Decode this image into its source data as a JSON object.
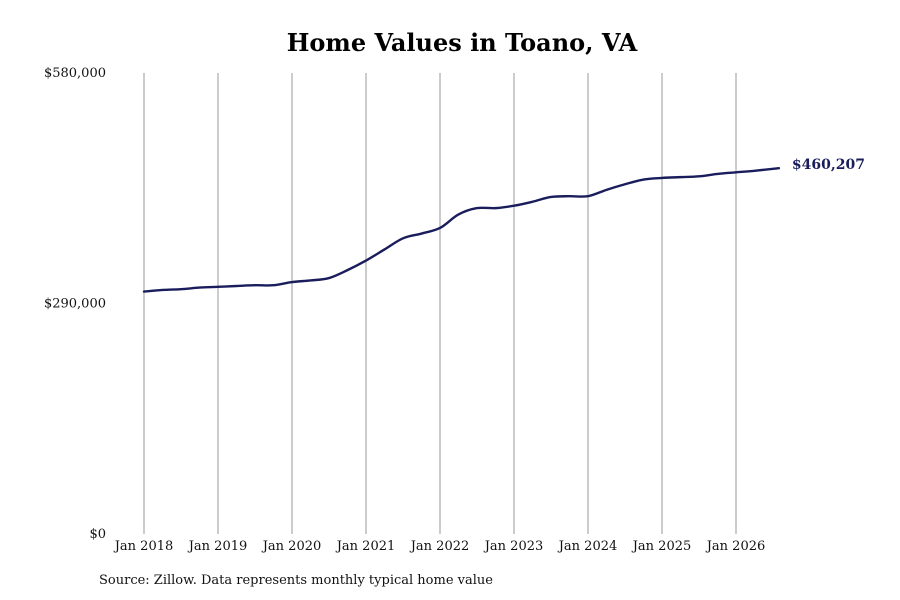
{
  "chart_data": {
    "type": "line",
    "title": "Home Values in Toano, VA",
    "xlabel": "",
    "ylabel": "",
    "ylim": [
      0,
      580000
    ],
    "ytick_labels": [
      "$0",
      "$290,000",
      "$580,000"
    ],
    "yticks": [
      0,
      290000,
      580000
    ],
    "xtick_labels": [
      "Jan 2018",
      "Jan 2019",
      "Jan 2020",
      "Jan 2021",
      "Jan 2022",
      "Jan 2023",
      "Jan 2024",
      "Jan 2025",
      "Jan 2026"
    ],
    "xticks": [
      2018,
      2019,
      2020,
      2021,
      2022,
      2023,
      2024,
      2025,
      2026
    ],
    "xlim": [
      2018,
      2026.75
    ],
    "grid": "vertical",
    "line_color": "#1a1d5c",
    "grid_color": "#999999",
    "end_label": "$460,207",
    "series": [
      {
        "x": [
          2018.0,
          2018.25,
          2018.5,
          2018.75,
          2019.0,
          2019.25,
          2019.5,
          2019.75,
          2020.0,
          2020.25,
          2020.5,
          2020.75,
          2021.0,
          2021.25,
          2021.5,
          2021.75,
          2022.0,
          2022.25,
          2022.5,
          2022.75,
          2023.0,
          2023.25,
          2023.5,
          2023.75,
          2024.0,
          2024.25,
          2024.5,
          2024.75,
          2025.0,
          2025.25,
          2025.5,
          2025.75,
          2026.0,
          2026.25,
          2026.58
        ],
        "values": [
          305000,
          307000,
          308000,
          310000,
          311000,
          312000,
          313000,
          313000,
          317000,
          319000,
          322000,
          332000,
          344000,
          358000,
          372000,
          378000,
          385000,
          402000,
          410000,
          410000,
          413000,
          418000,
          424000,
          425000,
          425000,
          433000,
          440000,
          446000,
          448000,
          449000,
          450000,
          453000,
          455000,
          457000,
          460207
        ]
      }
    ]
  },
  "source": "Source: Zillow. Data represents monthly typical home value"
}
